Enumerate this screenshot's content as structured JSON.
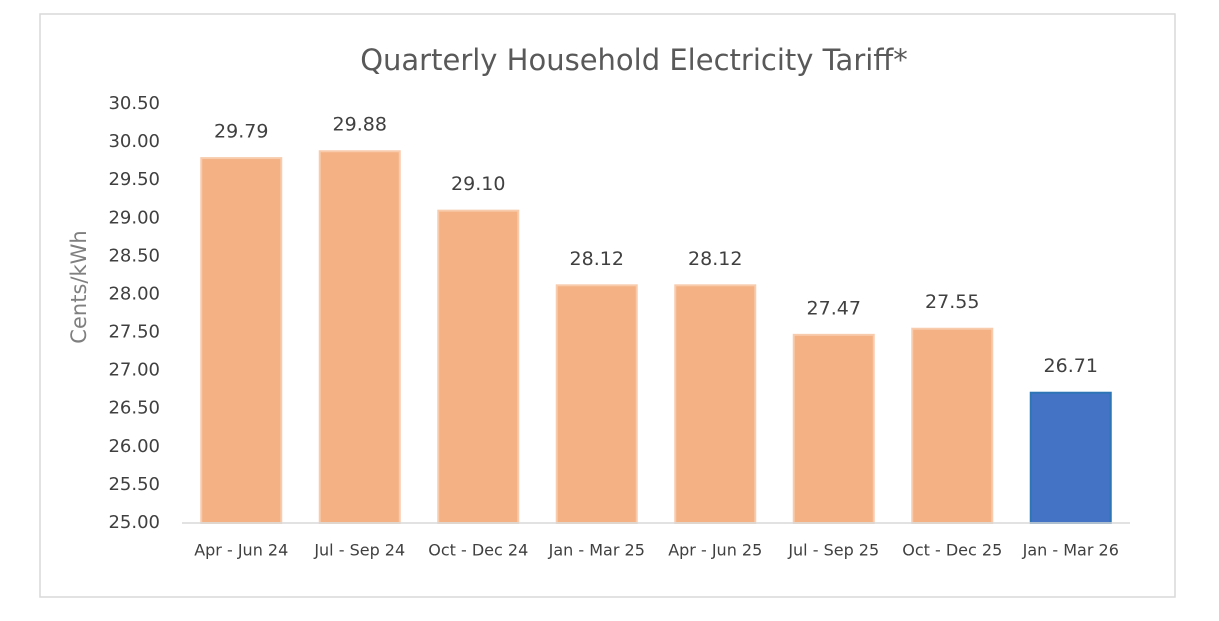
{
  "chart_data": {
    "type": "bar",
    "title": "Quarterly Household Electricity Tariff*",
    "y_label": "Cents/kWh",
    "categories": [
      "Apr - Jun 24",
      "Jul - Sep 24",
      "Oct - Dec 24",
      "Jan - Mar 25",
      "Apr - Jun 25",
      "Jul - Sep 25",
      "Oct - Dec 25",
      "Jan - Mar 26"
    ],
    "values": [
      29.79,
      29.88,
      29.1,
      28.12,
      28.12,
      27.47,
      27.55,
      26.71
    ],
    "value_labels": [
      "29.79",
      "29.88",
      "29.10",
      "28.12",
      "28.12",
      "27.47",
      "27.55",
      "26.71"
    ],
    "colors": [
      "#f4b183",
      "#f4b183",
      "#f4b183",
      "#f4b183",
      "#f4b183",
      "#f4b183",
      "#f4b183",
      "#4472c4"
    ],
    "ylim": [
      25,
      30.5
    ],
    "yticks": [
      {
        "value": 25,
        "label": "25.00"
      },
      {
        "value": 25.5,
        "label": "25.50"
      },
      {
        "value": 26,
        "label": "26.00"
      },
      {
        "value": 26.5,
        "label": "26.50"
      },
      {
        "value": 27,
        "label": "27.00"
      },
      {
        "value": 27.5,
        "label": "27.50"
      },
      {
        "value": 28,
        "label": "28.00"
      },
      {
        "value": 28.5,
        "label": "28.50"
      },
      {
        "value": 29,
        "label": "29.00"
      },
      {
        "value": 29.5,
        "label": "29.50"
      },
      {
        "value": 30,
        "label": "30.00"
      },
      {
        "value": 30.5,
        "label": "30.50"
      }
    ],
    "grid": false
  }
}
